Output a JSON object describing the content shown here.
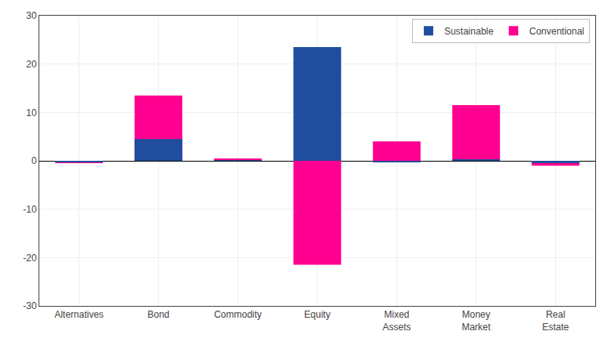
{
  "chart_data": {
    "type": "bar",
    "categories": [
      "Alternatives",
      "Bond",
      "Commodity",
      "Equity",
      "Mixed\nAssets",
      "Money\nMarket",
      "Real\nEstate"
    ],
    "series": [
      {
        "name": "Sustainable",
        "color": "#1F4E9E",
        "values": [
          -0.2,
          4.5,
          0.1,
          23.5,
          -0.3,
          0.2,
          -0.5
        ]
      },
      {
        "name": "Conventional",
        "color": "#FF0090",
        "values": [
          -0.5,
          13.5,
          0.5,
          -21.5,
          4.0,
          11.5,
          -1.0
        ]
      }
    ],
    "ylim": [
      -30,
      30
    ],
    "yticks": [
      -30,
      -20,
      -10,
      0,
      10,
      20,
      30
    ],
    "grid": true,
    "legend": "upper right"
  }
}
